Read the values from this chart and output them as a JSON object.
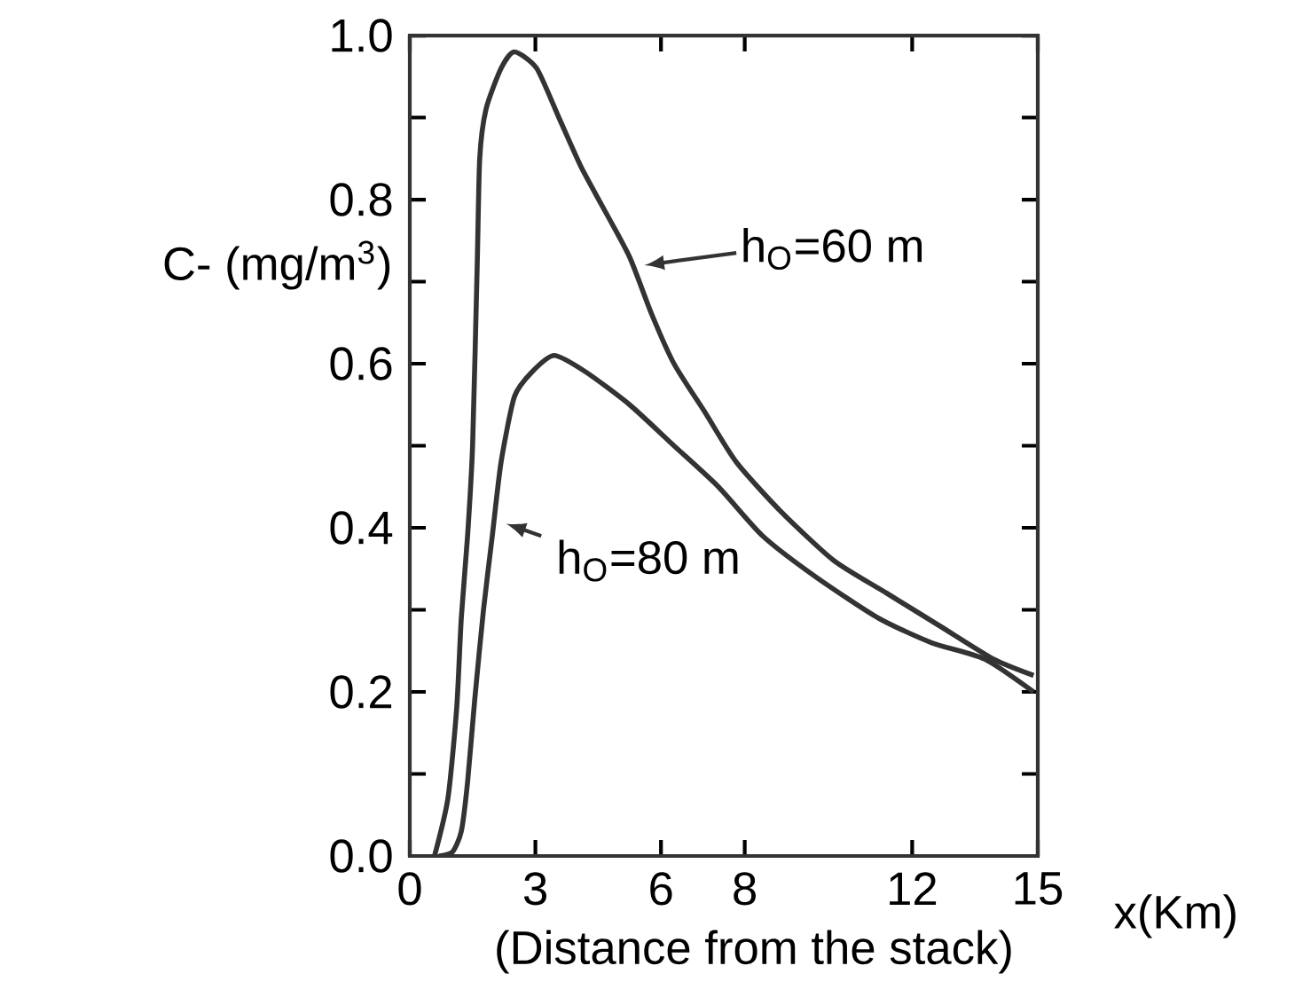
{
  "chart_data": {
    "type": "line",
    "xlabel": "x(Km)",
    "ylabel": "C- (mg/m$^{3}$)",
    "annotations": [
      "(Distance from the stack)"
    ],
    "legend": "top right",
    "xlim": [
      0,
      15
    ],
    "ylim": [
      0,
      1.0
    ],
    "xticks": [
      0,
      3,
      6,
      8,
      12,
      15
    ],
    "yticks": [
      {
        "value": 0,
        "label": "0.0"
      },
      0.2,
      0.4,
      0.6,
      0.8,
      {
        "value": 1.0,
        "label": "1.0"
      }
    ],
    "series": [
      {
        "name": "h$_{O}$=60 m",
        "color": "#333333",
        "x": [
          0.59,
          0.91,
          1.12,
          1.23,
          1.38,
          1.5,
          1.61,
          1.67,
          1.82,
          2.18,
          2.5,
          3.03,
          3.56,
          4.09,
          4.62,
          5.25,
          5.78,
          6.31,
          7.06,
          7.8,
          8.86,
          10.13,
          11.4,
          12.67,
          13.94,
          14.9
        ],
        "values": [
          0,
          0.07,
          0.18,
          0.29,
          0.39,
          0.5,
          0.72,
          0.85,
          0.91,
          0.96,
          0.98,
          0.96,
          0.9,
          0.84,
          0.79,
          0.73,
          0.66,
          0.6,
          0.54,
          0.48,
          0.42,
          0.36,
          0.32,
          0.28,
          0.24,
          0.22
        ]
      },
      {
        "name": "h$_{O}$=80 m",
        "color": "#333333",
        "x": [
          0.7,
          1.02,
          1.23,
          1.38,
          1.55,
          1.76,
          1.97,
          2.18,
          2.5,
          2.92,
          3.45,
          4.2,
          5.25,
          6.31,
          7.37,
          8.43,
          9.7,
          11.19,
          12.46,
          13.73,
          14.9
        ],
        "values": [
          0,
          0.005,
          0.03,
          0.09,
          0.19,
          0.3,
          0.39,
          0.48,
          0.56,
          0.59,
          0.61,
          0.59,
          0.55,
          0.5,
          0.45,
          0.39,
          0.34,
          0.29,
          0.26,
          0.24,
          0.2
        ]
      }
    ]
  }
}
